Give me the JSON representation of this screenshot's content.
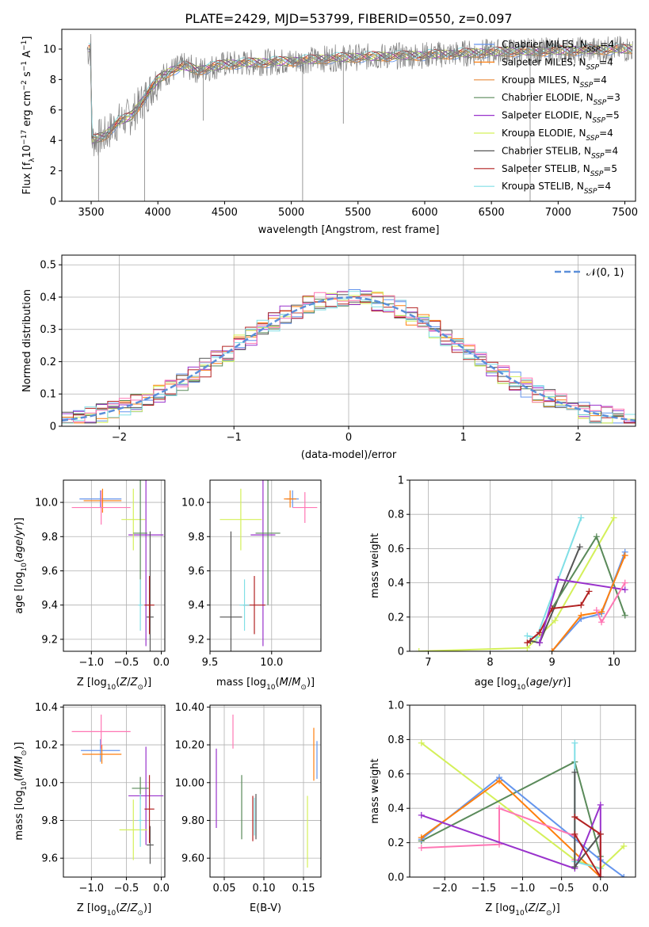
{
  "figure": {
    "title": "PLATE=2429, MJD=53799, FIBERID=0550, z=0.097"
  },
  "model_colors": {
    "Chabrier MILES": "#6495ed",
    "Salpeter MILES": "#ff7f0e",
    "Kroupa MILES": "#e88b3c",
    "Chabrier ELODIE": "#5a8a5a",
    "Salpeter ELODIE": "#9932cc",
    "Kroupa ELODIE": "#d4f05a",
    "Chabrier STELIB": "#555555",
    "Salpeter STELIB": "#b22222",
    "Kroupa STELIB": "#80dfe6",
    "Salpeter pink": "#ff77b4"
  },
  "chart_data": [
    {
      "id": "spectrum",
      "type": "line",
      "title": "PLATE=2429, MJD=53799, FIBERID=0550, z=0.097",
      "xlabel": "wavelength [Angstrom, rest frame]",
      "ylabel": "Flux [fλ10⁻¹⁷ erg cm⁻² s⁻¹ A⁻¹]",
      "xlim": [
        3280,
        7580
      ],
      "ylim": [
        0,
        11.3
      ],
      "xticks": [
        3500,
        4000,
        4500,
        5000,
        5500,
        6000,
        6500,
        7000,
        7500
      ],
      "yticks": [
        0,
        2,
        4,
        6,
        8,
        10
      ],
      "grid": false,
      "legend_placement": "right",
      "legend": [
        {
          "label": "Chabrier MILES, N",
          "sub": "SSP",
          "suffix": "=4",
          "color": "#6495ed"
        },
        {
          "label": "Salpeter MILES, N",
          "sub": "SSP",
          "suffix": "=4",
          "color": "#ff7f0e"
        },
        {
          "label": "Kroupa MILES, N",
          "sub": "SSP",
          "suffix": "=4",
          "color": "#e88b3c"
        },
        {
          "label": "Chabrier ELODIE, N",
          "sub": "SSP",
          "suffix": "=3",
          "color": "#5a8a5a"
        },
        {
          "label": "Salpeter ELODIE, N",
          "sub": "SSP",
          "suffix": "=5",
          "color": "#9932cc"
        },
        {
          "label": "Kroupa ELODIE, N",
          "sub": "SSP",
          "suffix": "=4",
          "color": "#d4f05a"
        },
        {
          "label": "Chabrier STELIB, N",
          "sub": "SSP",
          "suffix": "=4",
          "color": "#555555"
        },
        {
          "label": "Salpeter STELIB, N",
          "sub": "SSP",
          "suffix": "=5",
          "color": "#b22222"
        },
        {
          "label": "Kroupa STELIB, N",
          "sub": "SSP",
          "suffix": "=4",
          "color": "#80dfe6"
        }
      ],
      "data_trend": {
        "x": [
          3500,
          3600,
          3700,
          3800,
          3900,
          4000,
          4100,
          4200,
          4300,
          4500,
          4700,
          5000,
          5300,
          5600,
          6000,
          6500,
          7000,
          7500
        ],
        "y": [
          4.0,
          4.3,
          5.2,
          5.6,
          6.8,
          8.0,
          8.6,
          8.9,
          8.6,
          9.0,
          9.1,
          9.2,
          9.4,
          9.5,
          9.6,
          9.8,
          9.9,
          10.0
        ]
      },
      "data_noise_color": "#808080"
    },
    {
      "id": "residuals",
      "type": "line",
      "xlabel": "(data-model)/error",
      "ylabel": "Normed distribution",
      "xlim": [
        -2.5,
        2.5
      ],
      "ylim": [
        0,
        0.53
      ],
      "xticks": [
        -2,
        -1,
        0,
        1,
        2
      ],
      "yticks": [
        0.0,
        0.1,
        0.2,
        0.3,
        0.4,
        0.5
      ],
      "grid": true,
      "legend_placement": "top-right",
      "legend_label": "𝒩(0, 1)",
      "gaussian_color": "#5b8fd9",
      "bins": 50
    },
    {
      "id": "age_vs_Z",
      "type": "scatter",
      "xlabel": "Z [log₁₀(Z/Z⊙)]",
      "ylabel": "age  [log₁₀(age/yr)]",
      "xlim": [
        -1.4,
        0.05
      ],
      "ylim": [
        9.13,
        10.13
      ],
      "xticks": [
        -1.0,
        -0.5,
        0.0
      ],
      "yticks": [
        9.2,
        9.4,
        9.6,
        9.8,
        10.0
      ],
      "grid": true,
      "points": [
        {
          "model": "Chabrier MILES",
          "x": -0.87,
          "y": 10.02,
          "xerr": 0.3,
          "yerr": 0.05
        },
        {
          "model": "Salpeter MILES",
          "x": -0.84,
          "y": 10.01,
          "xerr": 0.27,
          "yerr": 0.07
        },
        {
          "model": "Salpeter pink",
          "x": -0.86,
          "y": 9.97,
          "xerr": 0.42,
          "yerr": 0.1
        },
        {
          "model": "Salpeter ELODIE",
          "x": -0.22,
          "y": 9.81,
          "xerr": 0.25,
          "yerr": 0.65
        },
        {
          "model": "Kroupa ELODIE",
          "x": -0.4,
          "y": 9.9,
          "xerr": 0.17,
          "yerr": 0.18
        },
        {
          "model": "Chabrier ELODIE",
          "x": -0.3,
          "y": 9.82,
          "xerr": 0.1,
          "yerr": 0.42
        },
        {
          "model": "Chabrier STELIB",
          "x": -0.16,
          "y": 9.33,
          "xerr": 0.05,
          "yerr": 0.5
        },
        {
          "model": "Salpeter STELIB",
          "x": -0.17,
          "y": 9.4,
          "xerr": 0.07,
          "yerr": 0.17
        },
        {
          "model": "Kroupa STELIB",
          "x": -0.3,
          "y": 9.4,
          "xerr": 0.03,
          "yerr": 0.15
        }
      ]
    },
    {
      "id": "age_vs_mass",
      "type": "scatter",
      "xlabel": "mass [log₁₀(M/M⊙)]",
      "xlim": [
        9.5,
        10.4
      ],
      "ylim": [
        9.13,
        10.13
      ],
      "xticks": [
        9.5,
        10.0
      ],
      "yticks": [
        9.2,
        9.4,
        9.6,
        9.8,
        10.0
      ],
      "grid": true,
      "points": [
        {
          "model": "Chabrier MILES",
          "x": 10.17,
          "y": 10.02,
          "xerr": 0.05,
          "yerr": 0.05
        },
        {
          "model": "Salpeter MILES",
          "x": 10.15,
          "y": 10.02,
          "xerr": 0.05,
          "yerr": 0.05
        },
        {
          "model": "Salpeter pink",
          "x": 10.27,
          "y": 9.97,
          "xerr": 0.1,
          "yerr": 0.09
        },
        {
          "model": "Salpeter ELODIE",
          "x": 9.93,
          "y": 9.81,
          "xerr": 0.1,
          "yerr": 0.65
        },
        {
          "model": "Kroupa ELODIE",
          "x": 9.75,
          "y": 9.9,
          "xerr": 0.17,
          "yerr": 0.18
        },
        {
          "model": "Chabrier ELODIE",
          "x": 9.97,
          "y": 9.82,
          "xerr": 0.1,
          "yerr": 0.42
        },
        {
          "model": "Chabrier STELIB",
          "x": 9.67,
          "y": 9.33,
          "xerr": 0.09,
          "yerr": 0.5
        },
        {
          "model": "Salpeter STELIB",
          "x": 9.86,
          "y": 9.4,
          "xerr": 0.09,
          "yerr": 0.17
        },
        {
          "model": "Kroupa STELIB",
          "x": 9.78,
          "y": 9.4,
          "xerr": 0.04,
          "yerr": 0.15
        }
      ]
    },
    {
      "id": "weight_vs_age",
      "type": "line",
      "xlabel": "age  [log₁₀(age/yr)]",
      "ylabel": "mass weight",
      "xlim": [
        6.7,
        10.35
      ],
      "ylim": [
        0,
        1
      ],
      "xticks": [
        7,
        8,
        9,
        10
      ],
      "yticks": [
        0.0,
        0.2,
        0.4,
        0.6,
        0.8,
        1.0
      ],
      "grid": true,
      "series": [
        {
          "model": "Kroupa ELODIE",
          "x": [
            6.85,
            8.6,
            9.05,
            10.0
          ],
          "y": [
            0.0,
            0.02,
            0.18,
            0.78
          ]
        },
        {
          "model": "Kroupa STELIB",
          "x": [
            8.6,
            8.75,
            9.47
          ],
          "y": [
            0.09,
            0.08,
            0.78
          ]
        },
        {
          "model": "Chabrier STELIB",
          "x": [
            8.65,
            8.8,
            9.45
          ],
          "y": [
            0.06,
            0.05,
            0.61
          ]
        },
        {
          "model": "Chabrier ELODIE",
          "x": [
            9.0,
            9.72,
            10.18
          ],
          "y": [
            0.25,
            0.67,
            0.21
          ]
        },
        {
          "model": "Salpeter STELIB",
          "x": [
            8.6,
            8.8,
            9.0,
            9.47,
            9.6
          ],
          "y": [
            0.05,
            0.11,
            0.25,
            0.27,
            0.35
          ]
        },
        {
          "model": "Salpeter ELODIE",
          "x": [
            8.8,
            9.1,
            10.18
          ],
          "y": [
            0.05,
            0.42,
            0.36
          ]
        },
        {
          "model": "Chabrier MILES",
          "x": [
            9.0,
            9.47,
            9.8,
            10.18
          ],
          "y": [
            0.0,
            0.19,
            0.22,
            0.58
          ]
        },
        {
          "model": "Salpeter MILES",
          "x": [
            9.0,
            9.47,
            9.8,
            10.18
          ],
          "y": [
            0.0,
            0.21,
            0.23,
            0.56
          ]
        },
        {
          "model": "Salpeter pink",
          "x": [
            9.72,
            9.8,
            10.18
          ],
          "y": [
            0.24,
            0.17,
            0.4
          ]
        }
      ]
    },
    {
      "id": "mass_vs_Z",
      "type": "scatter",
      "xlabel": "Z [log₁₀(Z/Z⊙)]",
      "ylabel": "mass [log₁₀(M/M⊙)]",
      "xlim": [
        -1.4,
        0.05
      ],
      "ylim": [
        9.5,
        10.41
      ],
      "xticks": [
        -1.0,
        -0.5,
        0.0
      ],
      "yticks": [
        9.6,
        9.8,
        10.0,
        10.2,
        10.4
      ],
      "grid": true,
      "points": [
        {
          "model": "Chabrier MILES",
          "x": -0.87,
          "y": 10.17,
          "xerr": 0.28,
          "yerr": 0.06
        },
        {
          "model": "Salpeter MILES",
          "x": -0.85,
          "y": 10.15,
          "xerr": 0.28,
          "yerr": 0.05
        },
        {
          "model": "Salpeter pink",
          "x": -0.86,
          "y": 10.27,
          "xerr": 0.42,
          "yerr": 0.09
        },
        {
          "model": "Salpeter ELODIE",
          "x": -0.22,
          "y": 9.93,
          "xerr": 0.25,
          "yerr": 0.26
        },
        {
          "model": "Kroupa ELODIE",
          "x": -0.4,
          "y": 9.75,
          "xerr": 0.2,
          "yerr": 0.16
        },
        {
          "model": "Chabrier ELODIE",
          "x": -0.3,
          "y": 9.97,
          "xerr": 0.12,
          "yerr": 0.06
        },
        {
          "model": "Chabrier STELIB",
          "x": -0.16,
          "y": 9.67,
          "xerr": 0.05,
          "yerr": 0.1
        },
        {
          "model": "Salpeter STELIB",
          "x": -0.17,
          "y": 9.86,
          "xerr": 0.07,
          "yerr": 0.18
        },
        {
          "model": "Kroupa STELIB",
          "x": -0.3,
          "y": 9.8,
          "xerr": 0.03,
          "yerr": 0.14
        }
      ]
    },
    {
      "id": "mass_vs_ebv",
      "type": "scatter",
      "xlabel": "E(B-V)",
      "xlim": [
        0.032,
        0.172
      ],
      "ylim": [
        9.5,
        10.41
      ],
      "xticks": [
        0.05,
        0.1,
        0.15
      ],
      "yticks": [
        9.6,
        9.8,
        10.0,
        10.2,
        10.4
      ],
      "grid": true,
      "points": [
        {
          "model": "Salpeter pink",
          "x": 0.061,
          "y": 10.27,
          "yerr": 0.09
        },
        {
          "model": "Salpeter ELODIE",
          "x": 0.04,
          "y": 9.97,
          "yerr": 0.21
        },
        {
          "model": "Chabrier ELODIE",
          "x": 0.072,
          "y": 9.87,
          "yerr": 0.17
        },
        {
          "model": "Salpeter STELIB",
          "x": 0.086,
          "y": 9.81,
          "yerr": 0.12
        },
        {
          "model": "Kroupa STELIB",
          "x": 0.088,
          "y": 9.82,
          "yerr": 0.1
        },
        {
          "model": "Chabrier STELIB",
          "x": 0.09,
          "y": 9.82,
          "yerr": 0.12
        },
        {
          "model": "Kroupa ELODIE",
          "x": 0.155,
          "y": 9.74,
          "yerr": 0.19
        },
        {
          "model": "Salpeter MILES",
          "x": 0.163,
          "y": 10.15,
          "yerr": 0.14
        },
        {
          "model": "Chabrier MILES",
          "x": 0.167,
          "y": 10.12,
          "yerr": 0.1
        }
      ]
    },
    {
      "id": "weight_vs_Z",
      "type": "line",
      "xlabel": "Z [log₁₀(Z/Z⊙)]",
      "ylabel": "mass weight",
      "xlim": [
        -2.45,
        0.45
      ],
      "ylim": [
        0,
        1
      ],
      "xticks": [
        -2.0,
        -1.5,
        -1.0,
        -0.5,
        0.0
      ],
      "yticks": [
        0.0,
        0.2,
        0.4,
        0.6,
        0.8,
        1.0
      ],
      "grid": true,
      "series": [
        {
          "model": "Kroupa ELODIE",
          "x": [
            -2.3,
            -0.33,
            0.0,
            0.3
          ],
          "y": [
            0.78,
            0.1,
            0.05,
            0.18
          ]
        },
        {
          "model": "Chabrier ELODIE",
          "x": [
            -2.3,
            -0.33,
            0.0
          ],
          "y": [
            0.21,
            0.67,
            0.12
          ]
        },
        {
          "model": "Chabrier MILES",
          "x": [
            -2.3,
            -1.3,
            0.0,
            0.3
          ],
          "y": [
            0.22,
            0.58,
            0.1,
            0.0
          ]
        },
        {
          "model": "Salpeter MILES",
          "x": [
            -2.3,
            -1.3,
            0.0
          ],
          "y": [
            0.23,
            0.56,
            0.0
          ]
        },
        {
          "model": "Salpeter pink",
          "x": [
            -2.3,
            -1.3,
            -1.3,
            -0.33,
            -0.33
          ],
          "y": [
            0.17,
            0.19,
            0.4,
            0.24,
            0.1
          ]
        },
        {
          "model": "Salpeter ELODIE",
          "x": [
            -2.3,
            -0.33,
            0.0,
            0.0
          ],
          "y": [
            0.36,
            0.05,
            0.42,
            0.0
          ]
        },
        {
          "model": "Kroupa STELIB",
          "x": [
            -0.33,
            -0.33,
            0.0
          ],
          "y": [
            0.78,
            0.09,
            0.05
          ]
        },
        {
          "model": "Chabrier STELIB",
          "x": [
            -0.33,
            -0.33,
            0.0
          ],
          "y": [
            0.61,
            0.06,
            0.25
          ]
        },
        {
          "model": "Salpeter STELIB",
          "x": [
            -0.33,
            0.0,
            0.0,
            -0.33
          ],
          "y": [
            0.35,
            0.25,
            0.0,
            0.25
          ]
        }
      ]
    }
  ]
}
